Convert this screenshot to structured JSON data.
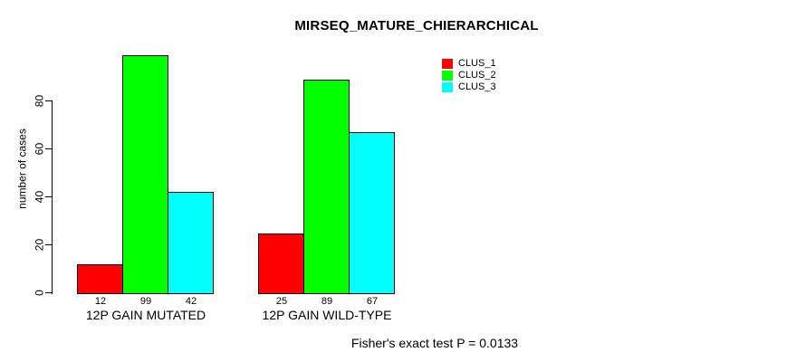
{
  "chart_data": {
    "type": "bar",
    "title": "MIRSEQ_MATURE_CHIERARCHICAL",
    "ylabel": "number of cases",
    "xlabel": "",
    "categories": [
      "12P GAIN MUTATED",
      "12P GAIN WILD-TYPE"
    ],
    "series": [
      {
        "name": "CLUS_1",
        "color": "#ff0000",
        "values": [
          12,
          25
        ]
      },
      {
        "name": "CLUS_2",
        "color": "#00ff00",
        "values": [
          99,
          89
        ]
      },
      {
        "name": "CLUS_3",
        "color": "#00ffff",
        "values": [
          42,
          67
        ]
      }
    ],
    "bar_value_labels": [
      [
        12,
        99,
        42
      ],
      [
        25,
        89,
        67
      ]
    ],
    "yticks": [
      0,
      20,
      40,
      60,
      80
    ],
    "ylim": [
      0,
      99
    ],
    "grid": false,
    "legend_position": "top-right",
    "annotation": "Fisher's exact test P = 0.0133",
    "bar_border_color": "#000000",
    "background_color": "#ffffff"
  }
}
